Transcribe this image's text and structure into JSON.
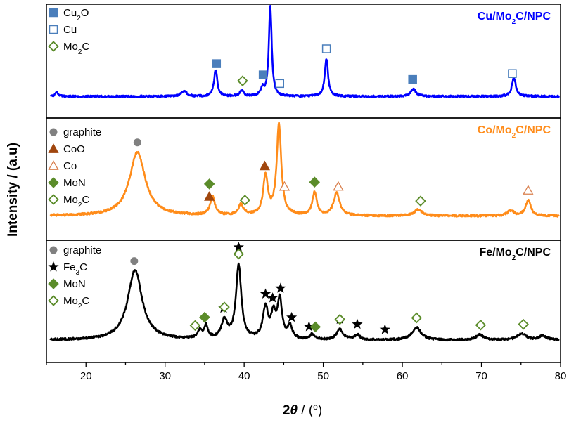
{
  "chart_data": {
    "type": "line",
    "xlabel": "2θ / (°)",
    "xlabel_parts": {
      "main": "2",
      "italic": "θ",
      "rest": " / (",
      "degree": "o",
      "close": ")"
    },
    "ylabel": "Intensity / (a.u)",
    "xlim": [
      15,
      80
    ],
    "x_ticks": [
      20,
      30,
      40,
      50,
      60,
      70,
      80
    ],
    "grid": false,
    "panels": [
      {
        "title": "Cu/Mo2C/NPC",
        "title_parts": [
          "Cu/Mo",
          "2",
          "C/NPC"
        ],
        "color": "#0000ff",
        "baseline": 0.08,
        "peaks": [
          {
            "x": 16.3,
            "h": 0.05,
            "w": 0.2
          },
          {
            "x": 32.4,
            "h": 0.06,
            "w": 0.4
          },
          {
            "x": 36.4,
            "h": 0.28,
            "w": 0.25
          },
          {
            "x": 39.7,
            "h": 0.06,
            "w": 0.3
          },
          {
            "x": 42.3,
            "h": 0.08,
            "w": 0.25
          },
          {
            "x": 43.3,
            "h": 0.95,
            "w": 0.22
          },
          {
            "x": 50.4,
            "h": 0.4,
            "w": 0.25
          },
          {
            "x": 61.4,
            "h": 0.08,
            "w": 0.4
          },
          {
            "x": 74.1,
            "h": 0.2,
            "w": 0.3
          }
        ],
        "legend": [
          {
            "marker": "square-filled",
            "label_parts": [
              "Cu",
              "2",
              "O"
            ],
            "color": "#4a7ebb"
          },
          {
            "marker": "square-open",
            "label_parts": [
              "Cu"
            ],
            "color": "#4a7ebb"
          },
          {
            "marker": "diamond-open",
            "label_parts": [
              "Mo",
              "2",
              "C"
            ],
            "color": "#5b8c2a"
          }
        ],
        "markers": [
          {
            "x": 36.5,
            "marker": "square-filled",
            "color": "#4a7ebb"
          },
          {
            "x": 42.4,
            "marker": "square-filled",
            "color": "#4a7ebb"
          },
          {
            "x": 61.3,
            "marker": "square-filled",
            "color": "#4a7ebb"
          },
          {
            "x": 44.5,
            "marker": "square-open",
            "color": "#4a7ebb"
          },
          {
            "x": 50.4,
            "marker": "square-open",
            "color": "#4a7ebb"
          },
          {
            "x": 73.9,
            "marker": "square-open",
            "color": "#4a7ebb"
          },
          {
            "x": 39.8,
            "marker": "diamond-open",
            "color": "#5b8c2a"
          }
        ]
      },
      {
        "title": "Co/Mo2C/NPC",
        "title_parts": [
          "Co/Mo",
          "2",
          "C/NPC"
        ],
        "color": "#ff8c1a",
        "baseline": 0.1,
        "peaks": [
          {
            "x": 26.5,
            "h": 0.62,
            "w": 1.2
          },
          {
            "x": 36.0,
            "h": 0.18,
            "w": 0.35
          },
          {
            "x": 39.6,
            "h": 0.1,
            "w": 0.4
          },
          {
            "x": 42.7,
            "h": 0.38,
            "w": 0.35
          },
          {
            "x": 44.4,
            "h": 0.88,
            "w": 0.35
          },
          {
            "x": 48.9,
            "h": 0.22,
            "w": 0.35
          },
          {
            "x": 51.7,
            "h": 0.22,
            "w": 0.45
          },
          {
            "x": 62.0,
            "h": 0.06,
            "w": 0.6
          },
          {
            "x": 73.7,
            "h": 0.05,
            "w": 0.5
          },
          {
            "x": 75.9,
            "h": 0.15,
            "w": 0.4
          }
        ],
        "legend": [
          {
            "marker": "circle-filled",
            "label_parts": [
              "graphite"
            ],
            "color": "#808080"
          },
          {
            "marker": "triangle-filled",
            "label_parts": [
              "CoO"
            ],
            "color": "#a0460e"
          },
          {
            "marker": "triangle-open",
            "label_parts": [
              "Co"
            ],
            "color": "#d9804f"
          },
          {
            "marker": "diamond-filled",
            "label_parts": [
              "MoN"
            ],
            "color": "#5b8c2a"
          },
          {
            "marker": "diamond-open",
            "label_parts": [
              "Mo",
              "2",
              "C"
            ],
            "color": "#5b8c2a"
          }
        ],
        "markers": [
          {
            "x": 26.5,
            "marker": "circle-filled",
            "color": "#808080"
          },
          {
            "x": 35.6,
            "marker": "triangle-filled",
            "color": "#a0460e"
          },
          {
            "x": 42.6,
            "marker": "triangle-filled",
            "color": "#a0460e"
          },
          {
            "x": 45.1,
            "marker": "triangle-open",
            "color": "#d9804f"
          },
          {
            "x": 51.9,
            "marker": "triangle-open",
            "color": "#d9804f"
          },
          {
            "x": 75.9,
            "marker": "triangle-open",
            "color": "#d9804f"
          },
          {
            "x": 35.6,
            "marker": "diamond-filled",
            "color": "#5b8c2a",
            "stack": 1
          },
          {
            "x": 48.9,
            "marker": "diamond-filled",
            "color": "#5b8c2a"
          },
          {
            "x": 40.1,
            "marker": "diamond-open",
            "color": "#5b8c2a"
          },
          {
            "x": 62.3,
            "marker": "diamond-open",
            "color": "#5b8c2a"
          }
        ]
      },
      {
        "title": "Fe/Mo2C/NPC",
        "title_parts": [
          "Fe/Mo",
          "2",
          "C/NPC"
        ],
        "color": "#000000",
        "baseline": 0.08,
        "peaks": [
          {
            "x": 26.2,
            "h": 0.68,
            "w": 1.1
          },
          {
            "x": 34.4,
            "h": 0.08,
            "w": 0.35
          },
          {
            "x": 35.2,
            "h": 0.12,
            "w": 0.3
          },
          {
            "x": 37.5,
            "h": 0.18,
            "w": 0.45
          },
          {
            "x": 39.3,
            "h": 0.72,
            "w": 0.4
          },
          {
            "x": 42.7,
            "h": 0.3,
            "w": 0.4
          },
          {
            "x": 43.7,
            "h": 0.22,
            "w": 0.35
          },
          {
            "x": 44.5,
            "h": 0.38,
            "w": 0.35
          },
          {
            "x": 45.8,
            "h": 0.12,
            "w": 0.35
          },
          {
            "x": 48.6,
            "h": 0.05,
            "w": 0.35
          },
          {
            "x": 52.1,
            "h": 0.1,
            "w": 0.5
          },
          {
            "x": 54.3,
            "h": 0.05,
            "w": 0.4
          },
          {
            "x": 61.8,
            "h": 0.12,
            "w": 0.7
          },
          {
            "x": 69.8,
            "h": 0.05,
            "w": 0.6
          },
          {
            "x": 75.1,
            "h": 0.06,
            "w": 0.7
          },
          {
            "x": 77.8,
            "h": 0.04,
            "w": 0.6
          }
        ],
        "legend": [
          {
            "marker": "circle-filled",
            "label_parts": [
              "graphite"
            ],
            "color": "#808080"
          },
          {
            "marker": "star",
            "label_parts": [
              "Fe",
              "3",
              "C"
            ],
            "color": "#000000"
          },
          {
            "marker": "diamond-filled",
            "label_parts": [
              "MoN"
            ],
            "color": "#5b8c2a"
          },
          {
            "marker": "diamond-open",
            "label_parts": [
              "Mo",
              "2",
              "C"
            ],
            "color": "#5b8c2a"
          }
        ],
        "markers": [
          {
            "x": 26.1,
            "marker": "circle-filled",
            "color": "#808080"
          },
          {
            "x": 39.3,
            "marker": "star",
            "color": "#000000",
            "stack": 1
          },
          {
            "x": 37.4,
            "marker": "star",
            "color": "#000000"
          },
          {
            "x": 42.7,
            "marker": "star",
            "color": "#000000"
          },
          {
            "x": 43.6,
            "marker": "star",
            "color": "#000000"
          },
          {
            "x": 44.6,
            "marker": "star",
            "color": "#000000"
          },
          {
            "x": 46.0,
            "marker": "star",
            "color": "#000000"
          },
          {
            "x": 48.2,
            "marker": "star",
            "color": "#000000"
          },
          {
            "x": 52.1,
            "marker": "star",
            "color": "#000000"
          },
          {
            "x": 54.3,
            "marker": "star",
            "color": "#000000"
          },
          {
            "x": 57.8,
            "marker": "star",
            "color": "#000000"
          },
          {
            "x": 35.0,
            "marker": "diamond-filled",
            "color": "#5b8c2a"
          },
          {
            "x": 49.0,
            "marker": "diamond-filled",
            "color": "#5b8c2a"
          },
          {
            "x": 33.8,
            "marker": "diamond-open",
            "color": "#5b8c2a"
          },
          {
            "x": 37.5,
            "marker": "diamond-open",
            "color": "#5b8c2a"
          },
          {
            "x": 39.3,
            "marker": "diamond-open",
            "color": "#5b8c2a"
          },
          {
            "x": 52.1,
            "marker": "diamond-open",
            "color": "#5b8c2a"
          },
          {
            "x": 61.8,
            "marker": "diamond-open",
            "color": "#5b8c2a"
          },
          {
            "x": 69.9,
            "marker": "diamond-open",
            "color": "#5b8c2a"
          },
          {
            "x": 75.3,
            "marker": "diamond-open",
            "color": "#5b8c2a"
          }
        ]
      }
    ]
  }
}
